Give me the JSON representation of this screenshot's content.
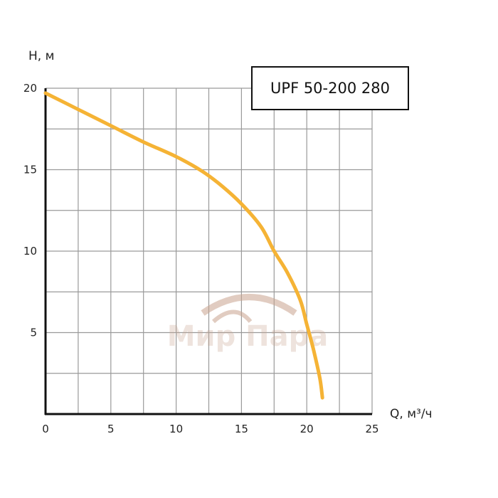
{
  "chart_data": {
    "type": "line",
    "title": "UPF 50-200 280",
    "xlabel": "Q, м³/ч",
    "ylabel": "H, м",
    "xlim": [
      0,
      25
    ],
    "ylim": [
      0,
      20
    ],
    "x_ticks": [
      0,
      5,
      10,
      15,
      20,
      25
    ],
    "y_ticks": [
      5,
      10,
      15,
      20
    ],
    "grid": true,
    "x_grid_step": 2.5,
    "y_grid_step": 2.5,
    "series": [
      {
        "color": "#f5b335",
        "x": [
          0,
          2.5,
          5,
          7.5,
          10,
          12,
          13.5,
          15,
          16.5,
          17.5,
          18.5,
          19.5,
          20,
          20.5,
          21,
          21.2
        ],
        "y": [
          19.7,
          18.7,
          17.7,
          16.7,
          15.8,
          14.9,
          14.0,
          12.9,
          11.5,
          10.0,
          8.7,
          7.0,
          5.5,
          4.0,
          2.2,
          1.0
        ]
      }
    ]
  },
  "watermark": {
    "text": "Мир Пара"
  }
}
